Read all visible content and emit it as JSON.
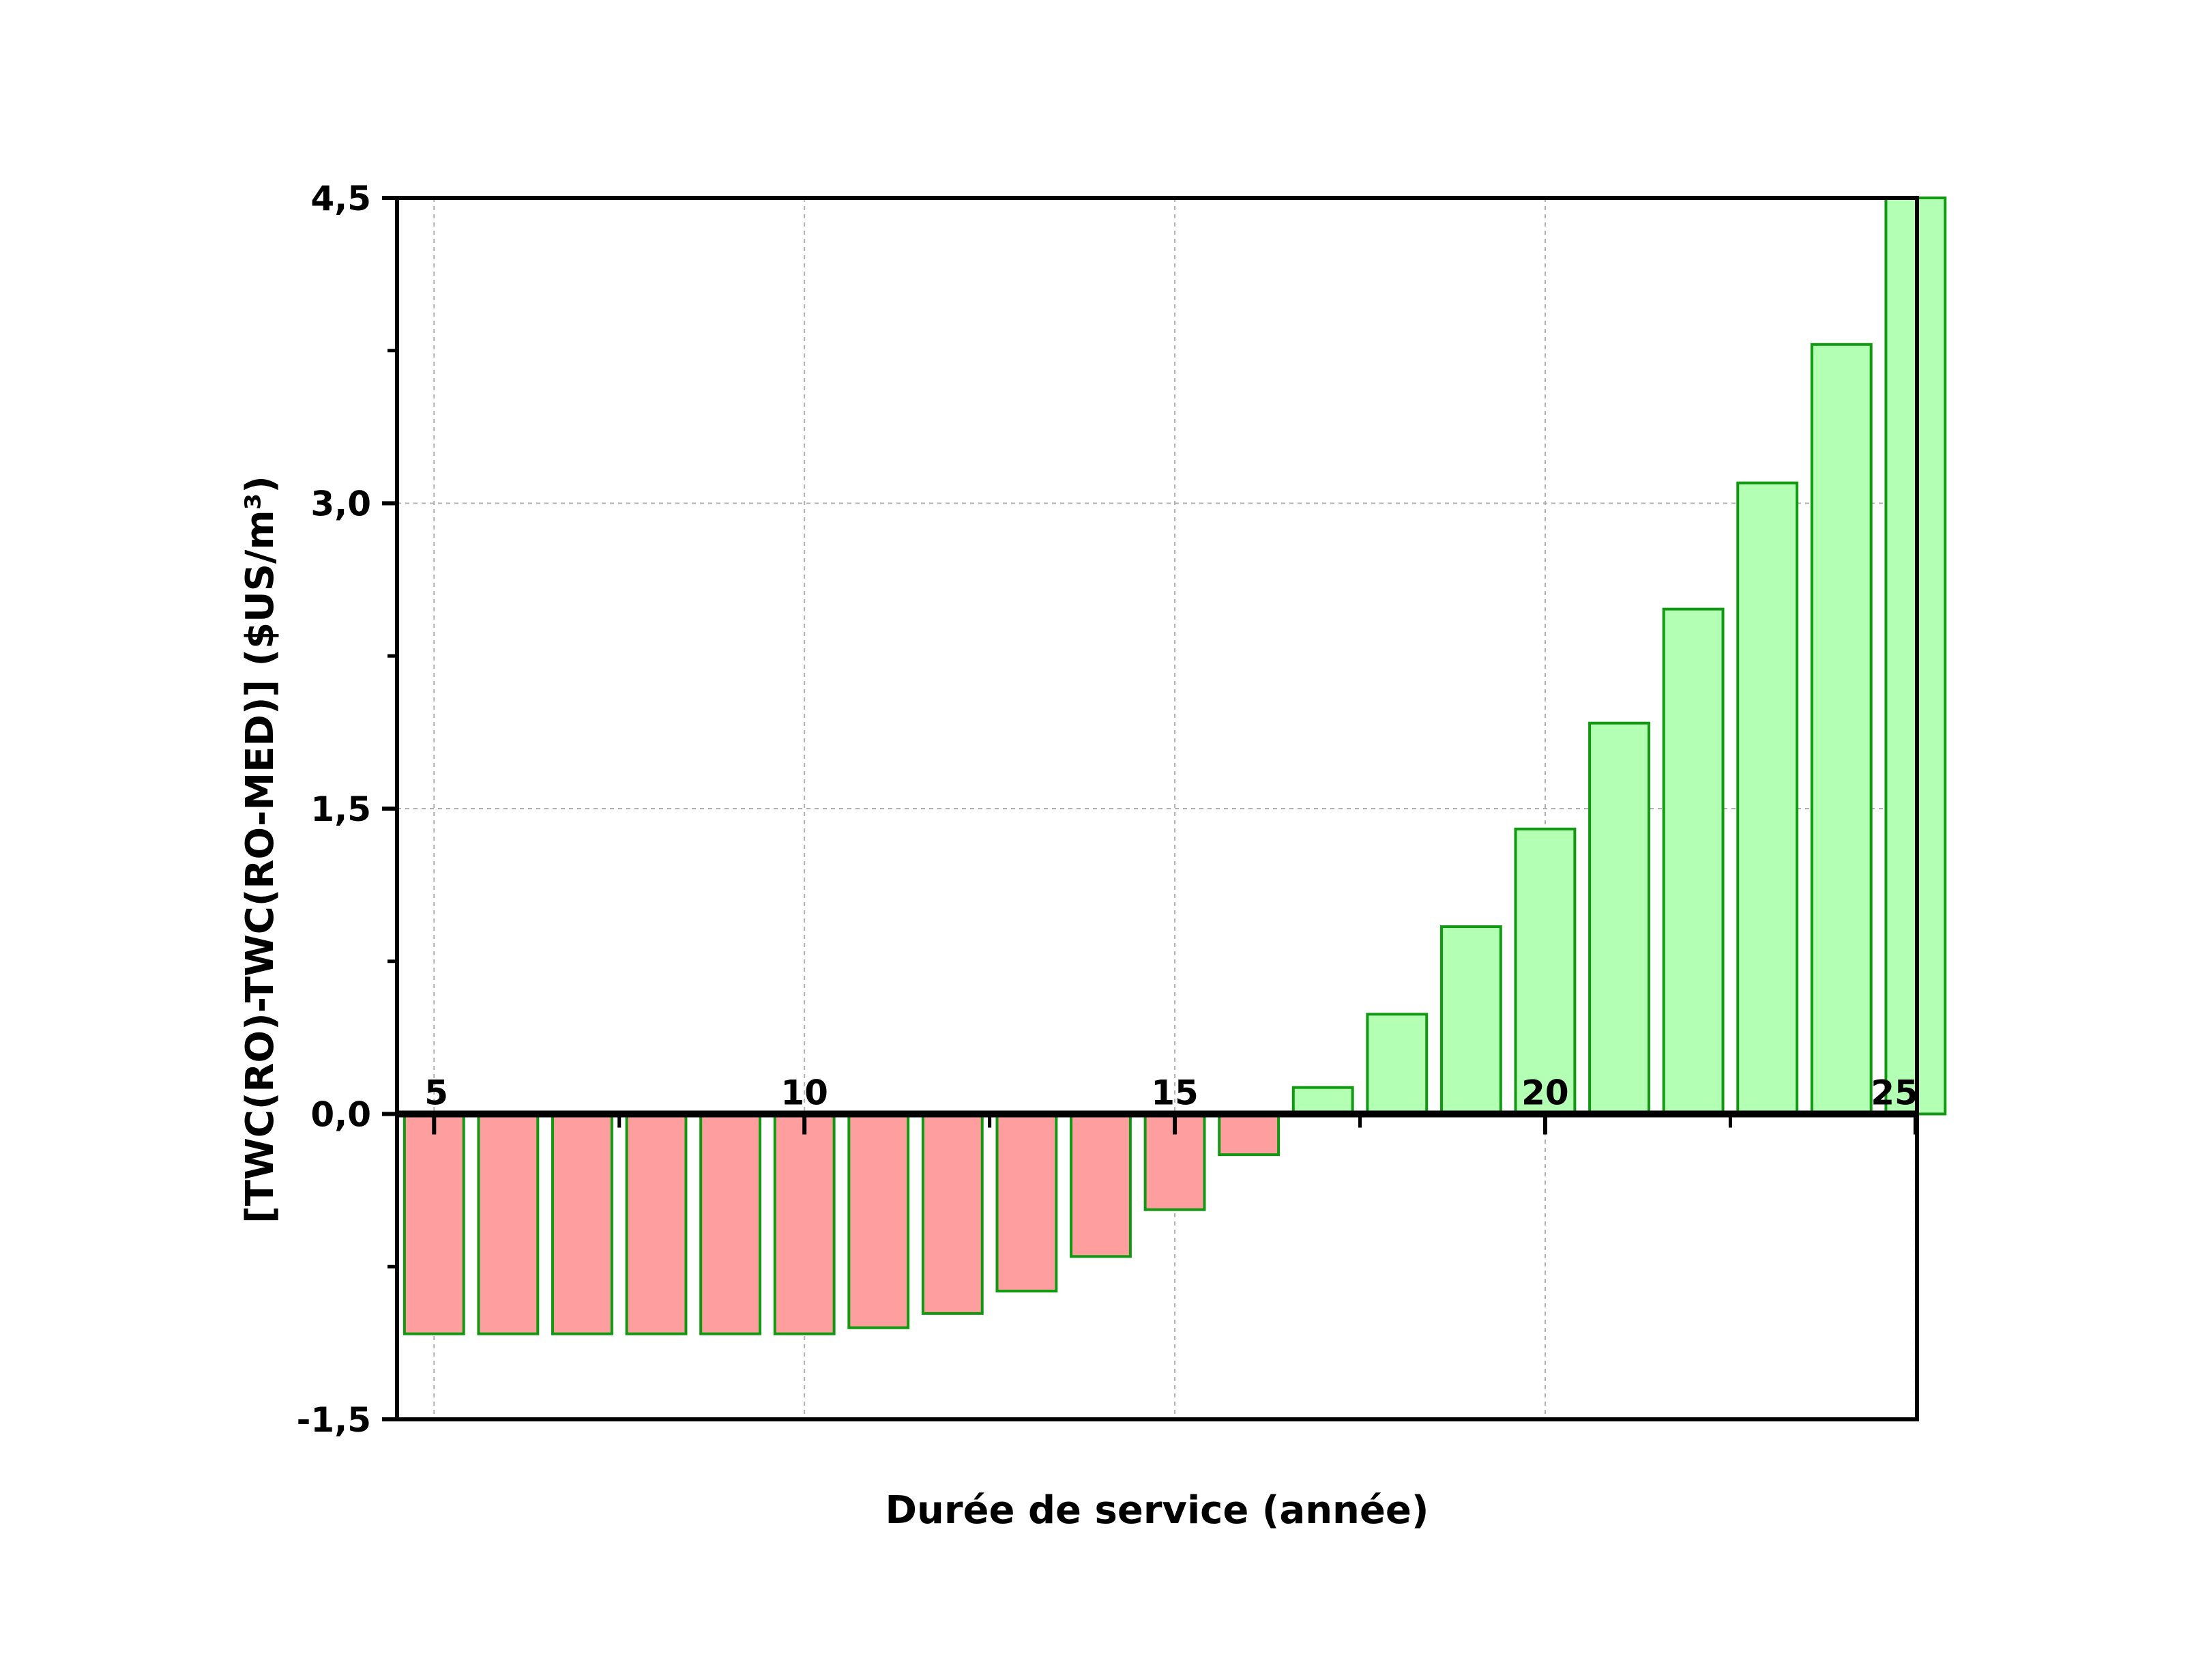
{
  "chart_data": {
    "type": "bar",
    "xlabel": "Durée de service (année)",
    "ylabel": "[TWC(RO)-TWC(RO-MED)] ($US/m³)",
    "x": [
      5,
      6,
      7,
      8,
      9,
      10,
      11,
      12,
      13,
      14,
      15,
      16,
      17,
      18,
      19,
      20,
      21,
      22,
      23,
      24,
      25
    ],
    "values": [
      -1.08,
      -1.08,
      -1.08,
      -1.08,
      -1.08,
      -1.08,
      -1.05,
      -0.98,
      -0.87,
      -0.7,
      -0.47,
      -0.2,
      0.13,
      0.49,
      0.92,
      1.4,
      1.92,
      2.48,
      3.1,
      3.78,
      4.5
    ],
    "xlim": [
      4.5,
      25.02
    ],
    "ylim": [
      -1.5,
      4.5
    ],
    "xticks": [
      5,
      10,
      15,
      20,
      25
    ],
    "xtick_labels": [
      "5",
      "10",
      "15",
      "20",
      "25"
    ],
    "yticks": [
      -1.5,
      0.0,
      1.5,
      3.0,
      4.5
    ],
    "ytick_labels": [
      "-1,5",
      "0,0",
      "1,5",
      "3,0",
      "4,5"
    ],
    "grid": true,
    "colors": {
      "positive_fill": "#b3ffb3",
      "negative_fill": "#ff9e9e",
      "bar_stroke": "#119911",
      "grid": "#b0b0b0",
      "axis": "#000000"
    }
  }
}
